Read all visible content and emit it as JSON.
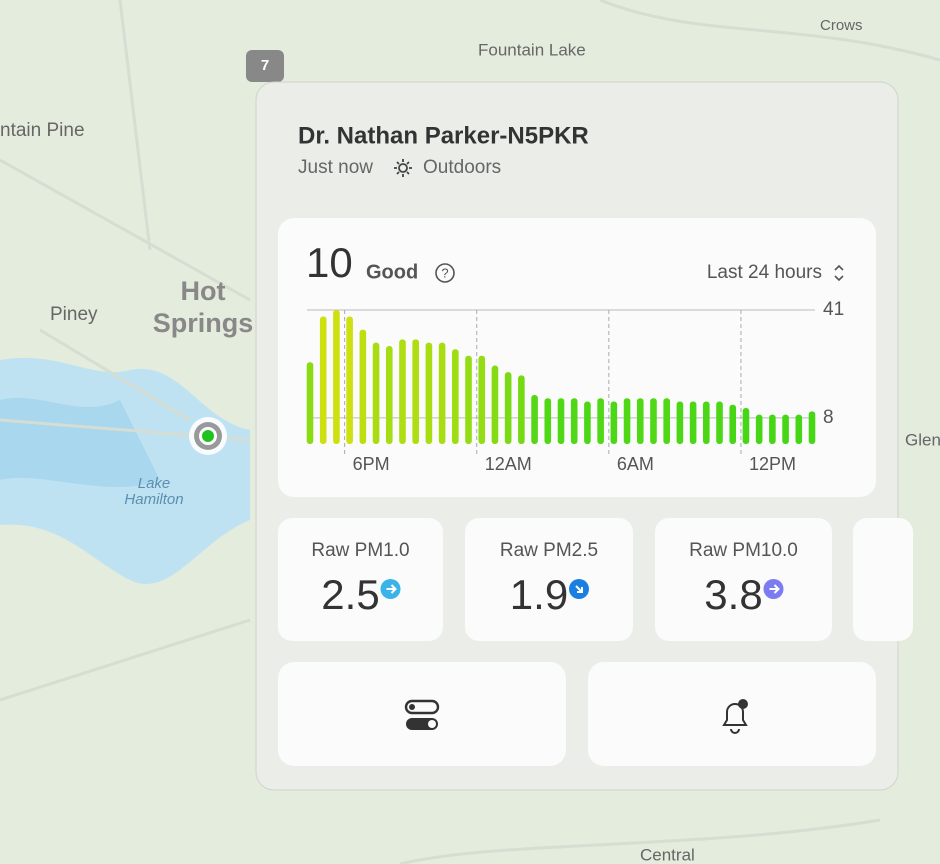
{
  "map": {
    "labels": [
      "Crows",
      "Fountain Lake",
      "ntain Pine",
      "Piney",
      "Hot",
      "Springs",
      "Lake",
      "Hamilton",
      "Glen",
      "Central"
    ],
    "shield": "7"
  },
  "card": {
    "title": "Dr. Nathan Parker-N5PKR",
    "time": "Just now",
    "setting": "Outdoors",
    "aqi": 10,
    "aqi_label": "Good",
    "range": "Last 24 hours",
    "metrics": [
      {
        "name": "Raw PM1.0",
        "value": 2.5
      },
      {
        "name": "Raw PM2.5",
        "value": 1.9
      },
      {
        "name": "Raw PM10.0",
        "value": 3.8
      }
    ]
  },
  "chart_data": {
    "type": "bar",
    "categories": [
      null,
      null,
      null,
      "6PM",
      null,
      null,
      null,
      null,
      null,
      null,
      null,
      null,
      null,
      "12AM",
      null,
      null,
      null,
      null,
      null,
      null,
      null,
      null,
      null,
      "6AM",
      null,
      null,
      null,
      null,
      null,
      null,
      null,
      null,
      null,
      "12PM",
      null,
      null,
      null,
      null,
      null
    ],
    "values": [
      25,
      39,
      41,
      39,
      35,
      31,
      30,
      32,
      32,
      31,
      31,
      29,
      27,
      27,
      24,
      22,
      21,
      15,
      14,
      14,
      14,
      13,
      14,
      13,
      14,
      14,
      14,
      14,
      13,
      13,
      13,
      13,
      12,
      11,
      9,
      9,
      9,
      9,
      10
    ],
    "ylim": [
      0,
      41
    ],
    "yticks": [
      8,
      41
    ],
    "colors": [
      "#46d616",
      "#cde010"
    ],
    "grid": true
  }
}
